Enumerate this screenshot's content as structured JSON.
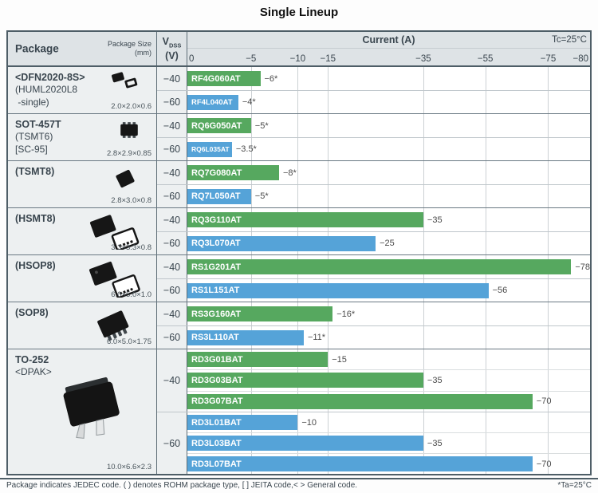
{
  "title": "Single Lineup",
  "header": {
    "package_label": "Package",
    "package_size_label": "Package Size",
    "package_size_unit": "(mm)",
    "vdss_main": "V",
    "vdss_sub": "DSS",
    "vdss_unit": "(V)",
    "current_label": "Current (A)",
    "tc_label": "Tc=25°C"
  },
  "colors": {
    "green": "#56a85f",
    "blue": "#55a3d8",
    "border_dark": "#4e5e67",
    "header_bg": "#dee3e6",
    "cell_bg": "#edf0f1"
  },
  "axis": {
    "ticks": [
      {
        "label": "0",
        "value": 0,
        "pos": 0
      },
      {
        "label": "−5",
        "value": 5,
        "pos": 0.158
      },
      {
        "label": "−10",
        "value": 10,
        "pos": 0.274
      },
      {
        "label": "−15",
        "value": 15,
        "pos": 0.349
      },
      {
        "label": "−35",
        "value": 35,
        "pos": 0.586
      },
      {
        "label": "−55",
        "value": 55,
        "pos": 0.74
      },
      {
        "label": "−75",
        "value": 75,
        "pos": 0.896
      },
      {
        "label": "−80",
        "value": 80,
        "pos": 1
      }
    ]
  },
  "groups": [
    {
      "name": "<DFN2020-8S>",
      "sub_lines": [
        "(HUML2020L8",
        " -single)"
      ],
      "size": "2.0×2.0×0.6",
      "icon": "dfn2020",
      "sections": [
        {
          "vdss": "−40",
          "color": "green",
          "bars": [
            {
              "part": "RF4G060AT",
              "value": 6,
              "label": "−6*"
            }
          ]
        },
        {
          "vdss": "−60",
          "color": "blue",
          "bars": [
            {
              "part": "RF4L040AT",
              "value": 4,
              "label": "−4*"
            }
          ]
        }
      ]
    },
    {
      "name": "SOT-457T",
      "sub_lines": [
        "(TSMT6)",
        "[SC-95]"
      ],
      "size": "2.8×2.9×0.85",
      "icon": "sot457t",
      "sections": [
        {
          "vdss": "−40",
          "color": "green",
          "bars": [
            {
              "part": "RQ6G050AT",
              "value": 5,
              "label": "−5*"
            }
          ]
        },
        {
          "vdss": "−60",
          "color": "blue",
          "bars": [
            {
              "part": "RQ6L035AT",
              "value": 3.5,
              "label": "−3.5*"
            }
          ]
        }
      ]
    },
    {
      "name": "(TSMT8)",
      "sub_lines": [],
      "size": "2.8×3.0×0.8",
      "icon": "tsmt8",
      "sections": [
        {
          "vdss": "−40",
          "color": "green",
          "bars": [
            {
              "part": "RQ7G080AT",
              "value": 8,
              "label": "−8*"
            }
          ]
        },
        {
          "vdss": "−60",
          "color": "blue",
          "bars": [
            {
              "part": "RQ7L050AT",
              "value": 5,
              "label": "−5*"
            }
          ]
        }
      ]
    },
    {
      "name": "(HSMT8)",
      "sub_lines": [],
      "size": "3.3×3.3×0.8",
      "icon": "hsmt8",
      "sections": [
        {
          "vdss": "−40",
          "color": "green",
          "bars": [
            {
              "part": "RQ3G110AT",
              "value": 35,
              "label": "−35"
            }
          ]
        },
        {
          "vdss": "−60",
          "color": "blue",
          "bars": [
            {
              "part": "RQ3L070AT",
              "value": 25,
              "label": "−25"
            }
          ]
        }
      ]
    },
    {
      "name": "(HSOP8)",
      "sub_lines": [],
      "size": "6.0×5.0×1.0",
      "icon": "hsop8",
      "sections": [
        {
          "vdss": "−40",
          "color": "green",
          "bars": [
            {
              "part": "RS1G201AT",
              "value": 78,
              "label": "−78"
            }
          ]
        },
        {
          "vdss": "−60",
          "color": "blue",
          "bars": [
            {
              "part": "RS1L151AT",
              "value": 56,
              "label": "−56"
            }
          ]
        }
      ]
    },
    {
      "name": "(SOP8)",
      "sub_lines": [],
      "size": "6.0×5.0×1.75",
      "icon": "sop8",
      "sections": [
        {
          "vdss": "−40",
          "color": "green",
          "bars": [
            {
              "part": "RS3G160AT",
              "value": 16,
              "label": "−16*"
            }
          ]
        },
        {
          "vdss": "−60",
          "color": "blue",
          "bars": [
            {
              "part": "RS3L110AT",
              "value": 11,
              "label": "−11*"
            }
          ]
        }
      ]
    },
    {
      "name": "TO-252",
      "sub_lines": [
        "<DPAK>"
      ],
      "size": "10.0×6.6×2.3",
      "icon": "to252",
      "sections": [
        {
          "vdss": "−40",
          "color": "green",
          "bars": [
            {
              "part": "RD3G01BAT",
              "value": 15,
              "label": "−15"
            },
            {
              "part": "RD3G03BAT",
              "value": 35,
              "label": "−35"
            },
            {
              "part": "RD3G07BAT",
              "value": 70,
              "label": "−70"
            }
          ]
        },
        {
          "vdss": "−60",
          "color": "blue",
          "bars": [
            {
              "part": "RD3L01BAT",
              "value": 10,
              "label": "−10"
            },
            {
              "part": "RD3L03BAT",
              "value": 35,
              "label": "−35"
            },
            {
              "part": "RD3L07BAT",
              "value": 70,
              "label": "−70"
            }
          ]
        }
      ]
    }
  ],
  "footer": {
    "note": "Package indicates JEDEC code. ( ) denotes ROHM package type, [ ] JEITA code,< > General code.",
    "ta_note": "*Ta=25°C"
  },
  "chart_data": {
    "type": "bar",
    "orientation": "horizontal",
    "title": "Single Lineup",
    "xlabel": "Current (A)",
    "x_ticks": [
      0,
      -5,
      -10,
      -15,
      -35,
      -55,
      -75,
      -80
    ],
    "axis_note": "non-linear (compressed) current axis",
    "condition": "Tc=25°C",
    "star_note": "* denotes Ta=25°C",
    "legend": {
      "green": "VDSS −40 V",
      "blue": "VDSS −60 V"
    },
    "series": [
      {
        "package": "<DFN2020-8S> (HUML2020L8 -single)",
        "size_mm": "2.0×2.0×0.6",
        "vdss_v": -40,
        "part": "RF4G060AT",
        "current_a": -6,
        "starred": true
      },
      {
        "package": "<DFN2020-8S> (HUML2020L8 -single)",
        "size_mm": "2.0×2.0×0.6",
        "vdss_v": -60,
        "part": "RF4L040AT",
        "current_a": -4,
        "starred": true
      },
      {
        "package": "SOT-457T (TSMT6) [SC-95]",
        "size_mm": "2.8×2.9×0.85",
        "vdss_v": -40,
        "part": "RQ6G050AT",
        "current_a": -5,
        "starred": true
      },
      {
        "package": "SOT-457T (TSMT6) [SC-95]",
        "size_mm": "2.8×2.9×0.85",
        "vdss_v": -60,
        "part": "RQ6L035AT",
        "current_a": -3.5,
        "starred": true
      },
      {
        "package": "(TSMT8)",
        "size_mm": "2.8×3.0×0.8",
        "vdss_v": -40,
        "part": "RQ7G080AT",
        "current_a": -8,
        "starred": true
      },
      {
        "package": "(TSMT8)",
        "size_mm": "2.8×3.0×0.8",
        "vdss_v": -60,
        "part": "RQ7L050AT",
        "current_a": -5,
        "starred": true
      },
      {
        "package": "(HSMT8)",
        "size_mm": "3.3×3.3×0.8",
        "vdss_v": -40,
        "part": "RQ3G110AT",
        "current_a": -35,
        "starred": false
      },
      {
        "package": "(HSMT8)",
        "size_mm": "3.3×3.3×0.8",
        "vdss_v": -60,
        "part": "RQ3L070AT",
        "current_a": -25,
        "starred": false
      },
      {
        "package": "(HSOP8)",
        "size_mm": "6.0×5.0×1.0",
        "vdss_v": -40,
        "part": "RS1G201AT",
        "current_a": -78,
        "starred": false
      },
      {
        "package": "(HSOP8)",
        "size_mm": "6.0×5.0×1.0",
        "vdss_v": -60,
        "part": "RS1L151AT",
        "current_a": -56,
        "starred": false
      },
      {
        "package": "(SOP8)",
        "size_mm": "6.0×5.0×1.75",
        "vdss_v": -40,
        "part": "RS3G160AT",
        "current_a": -16,
        "starred": true
      },
      {
        "package": "(SOP8)",
        "size_mm": "6.0×5.0×1.75",
        "vdss_v": -60,
        "part": "RS3L110AT",
        "current_a": -11,
        "starred": true
      },
      {
        "package": "TO-252 <DPAK>",
        "size_mm": "10.0×6.6×2.3",
        "vdss_v": -40,
        "part": "RD3G01BAT",
        "current_a": -15,
        "starred": false
      },
      {
        "package": "TO-252 <DPAK>",
        "size_mm": "10.0×6.6×2.3",
        "vdss_v": -40,
        "part": "RD3G03BAT",
        "current_a": -35,
        "starred": false
      },
      {
        "package": "TO-252 <DPAK>",
        "size_mm": "10.0×6.6×2.3",
        "vdss_v": -40,
        "part": "RD3G07BAT",
        "current_a": -70,
        "starred": false
      },
      {
        "package": "TO-252 <DPAK>",
        "size_mm": "10.0×6.6×2.3",
        "vdss_v": -60,
        "part": "RD3L01BAT",
        "current_a": -10,
        "starred": false
      },
      {
        "package": "TO-252 <DPAK>",
        "size_mm": "10.0×6.6×2.3",
        "vdss_v": -60,
        "part": "RD3L03BAT",
        "current_a": -35,
        "starred": false
      },
      {
        "package": "TO-252 <DPAK>",
        "size_mm": "10.0×6.6×2.3",
        "vdss_v": -60,
        "part": "RD3L07BAT",
        "current_a": -70,
        "starred": false
      }
    ]
  }
}
